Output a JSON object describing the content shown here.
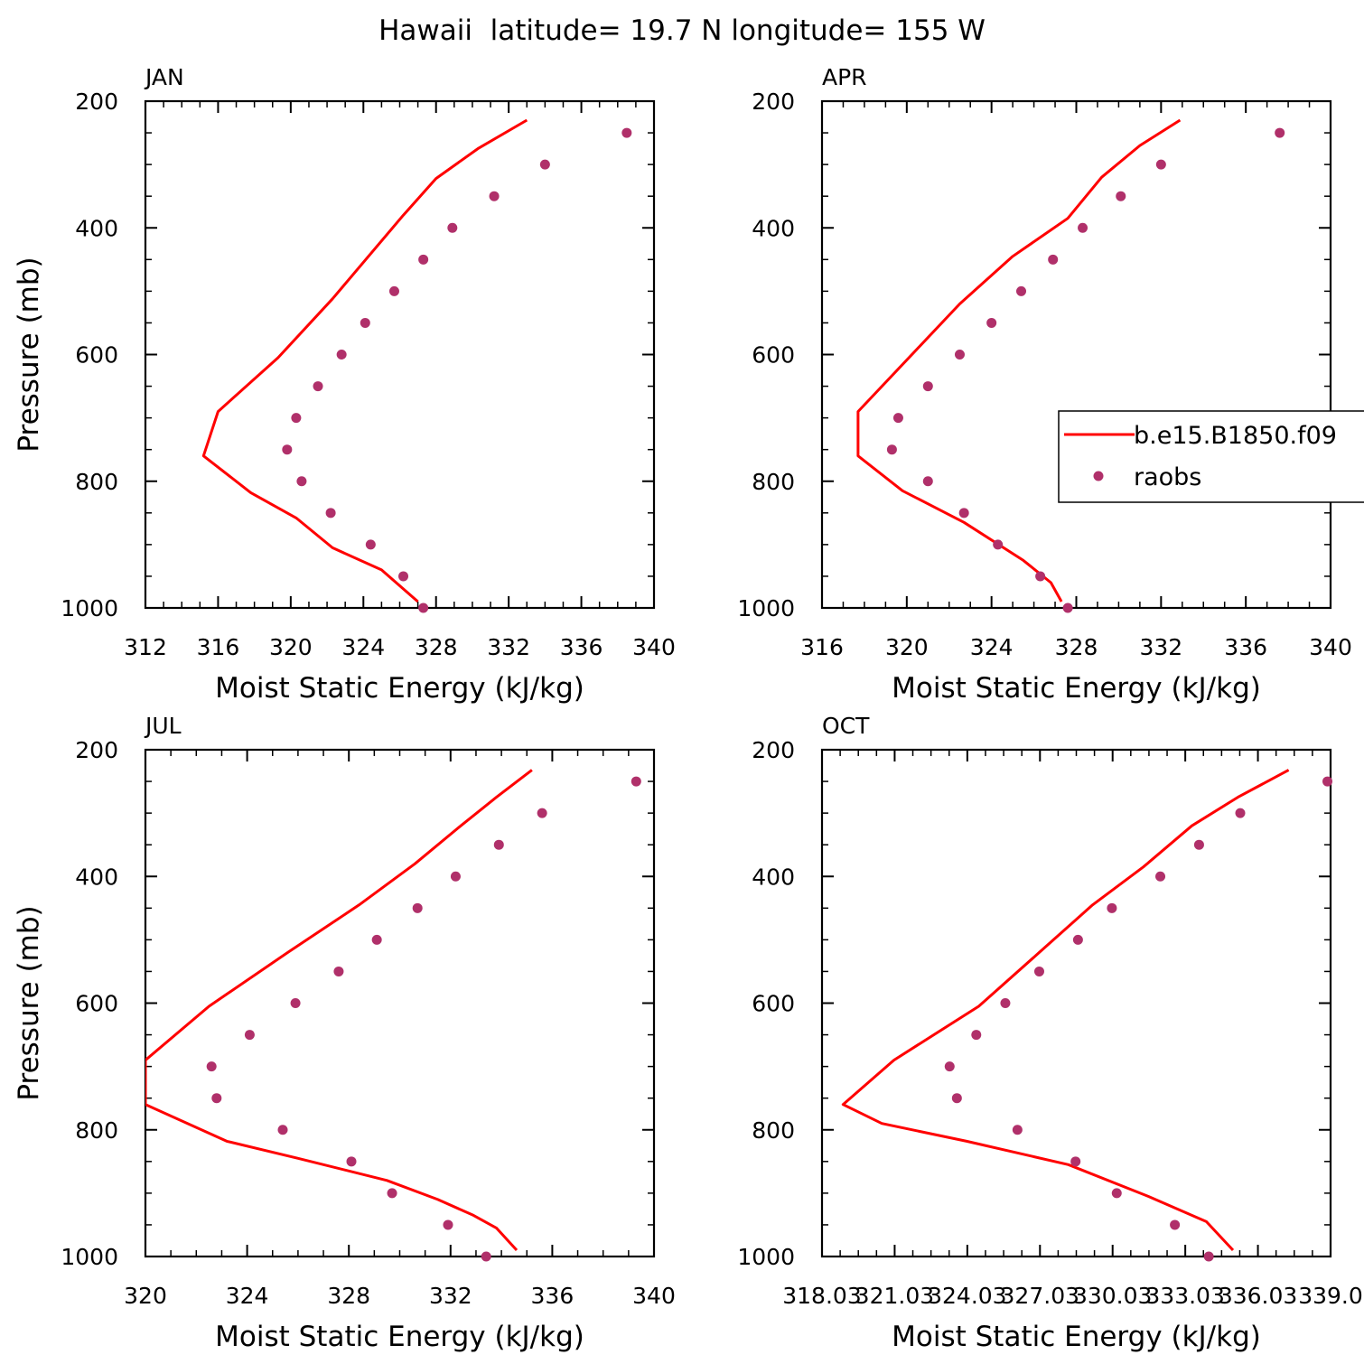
{
  "title": "Hawaii  latitude= 19.7 N longitude= 155 W",
  "colors": {
    "model": "#ff0000",
    "obs": "#b0306a",
    "axis": "#000000"
  },
  "legend": {
    "model_label": "b.e15.B1850.f09",
    "obs_label": "raobs",
    "placement": "inside APR panel, right edge"
  },
  "chart_data": [
    {
      "type": "line",
      "panel": "JAN",
      "title": "JAN",
      "xlabel": "Moist Static Energy (kJ/kg)",
      "ylabel": "Pressure (mb)",
      "xlim": [
        312,
        340
      ],
      "ylim": [
        1000,
        200
      ],
      "xticks": [
        312,
        316,
        320,
        324,
        328,
        332,
        336,
        340
      ],
      "xtick_labels": [
        "312",
        "316",
        "320",
        "324",
        "328",
        "332",
        "336",
        "340"
      ],
      "yticks": [
        200,
        400,
        600,
        800,
        1000
      ],
      "ytick_labels": [
        "200",
        "400",
        "600",
        "800",
        "1000"
      ],
      "series": [
        {
          "name": "b.e15.B1850.f09",
          "style": "line",
          "x": [
            333.0,
            330.3,
            328.0,
            326.2,
            322.3,
            319.3,
            316.0,
            315.2,
            317.8,
            320.3,
            322.3,
            325.0,
            327.0
          ],
          "y": [
            230,
            275,
            322,
            380,
            512,
            605,
            690,
            760,
            818,
            858,
            905,
            940,
            990
          ]
        },
        {
          "name": "raobs",
          "style": "points",
          "x": [
            338.5,
            334.0,
            331.2,
            328.9,
            327.3,
            325.7,
            324.1,
            322.8,
            321.5,
            320.3,
            319.8,
            320.6,
            322.2,
            324.4,
            326.2,
            327.3
          ],
          "y": [
            250,
            300,
            350,
            400,
            450,
            500,
            550,
            600,
            650,
            700,
            750,
            800,
            850,
            900,
            950,
            1000
          ]
        }
      ]
    },
    {
      "type": "line",
      "panel": "APR",
      "title": "APR",
      "xlabel": "Moist Static Energy (kJ/kg)",
      "ylabel": "",
      "xlim": [
        316,
        340
      ],
      "ylim": [
        1000,
        200
      ],
      "xticks": [
        316,
        320,
        324,
        328,
        332,
        336,
        340
      ],
      "xtick_labels": [
        "316",
        "320",
        "324",
        "328",
        "332",
        "336",
        "340"
      ],
      "yticks": [
        200,
        400,
        600,
        800,
        1000
      ],
      "ytick_labels": [
        "200",
        "400",
        "600",
        "800",
        "1000"
      ],
      "series": [
        {
          "name": "b.e15.B1850.f09",
          "style": "line",
          "x": [
            332.9,
            331.0,
            329.2,
            327.6,
            325.0,
            322.5,
            317.7,
            317.7,
            319.8,
            322.7,
            325.5,
            326.8,
            327.3
          ],
          "y": [
            230,
            270,
            320,
            385,
            445,
            520,
            690,
            760,
            815,
            865,
            925,
            960,
            990
          ]
        },
        {
          "name": "raobs",
          "style": "points",
          "x": [
            337.6,
            332.0,
            330.1,
            328.3,
            326.9,
            325.4,
            324.0,
            322.5,
            321.0,
            319.6,
            319.3,
            321.0,
            322.7,
            324.3,
            326.3,
            327.6
          ],
          "y": [
            250,
            300,
            350,
            400,
            450,
            500,
            550,
            600,
            650,
            700,
            750,
            800,
            850,
            900,
            950,
            1000
          ]
        }
      ]
    },
    {
      "type": "line",
      "panel": "JUL",
      "title": "JUL",
      "xlabel": "Moist Static Energy (kJ/kg)",
      "ylabel": "Pressure (mb)",
      "xlim": [
        320,
        340
      ],
      "ylim": [
        1000,
        200
      ],
      "xticks": [
        320,
        324,
        328,
        332,
        336,
        340
      ],
      "xtick_labels": [
        "320",
        "324",
        "328",
        "332",
        "336",
        "340"
      ],
      "yticks": [
        200,
        400,
        600,
        800,
        1000
      ],
      "ytick_labels": [
        "200",
        "400",
        "600",
        "800",
        "1000"
      ],
      "series": [
        {
          "name": "b.e15.B1850.f09",
          "style": "line",
          "x": [
            335.2,
            333.8,
            332.4,
            330.6,
            328.4,
            325.6,
            322.5,
            320.0,
            320.0,
            323.2,
            326.0,
            329.5,
            331.5,
            332.9,
            333.8,
            334.6
          ],
          "y": [
            232,
            275,
            320,
            380,
            445,
            520,
            605,
            690,
            760,
            818,
            845,
            880,
            910,
            935,
            955,
            990
          ]
        },
        {
          "name": "raobs",
          "style": "points",
          "x": [
            339.3,
            335.6,
            333.9,
            332.2,
            330.7,
            329.1,
            327.6,
            325.9,
            324.1,
            322.6,
            322.8,
            325.4,
            328.1,
            329.7,
            331.9,
            333.4
          ],
          "y": [
            250,
            300,
            350,
            400,
            450,
            500,
            550,
            600,
            650,
            700,
            750,
            800,
            850,
            900,
            950,
            1000
          ]
        }
      ]
    },
    {
      "type": "line",
      "panel": "OCT",
      "title": "OCT",
      "xlabel": "Moist Static Energy (kJ/kg)",
      "ylabel": "",
      "xlim": [
        318.03,
        339.03
      ],
      "ylim": [
        1000,
        200
      ],
      "xticks": [
        318.03,
        321.03,
        324.03,
        327.03,
        330.03,
        333.03,
        336.03,
        339.03
      ],
      "xtick_labels": [
        "318.03",
        "321.03",
        "324.03",
        "327.03",
        "330.03",
        "333.03",
        "336.03",
        "339.0"
      ],
      "yticks": [
        200,
        400,
        600,
        800,
        1000
      ],
      "ytick_labels": [
        "200",
        "400",
        "600",
        "800",
        "1000"
      ],
      "series": [
        {
          "name": "b.e15.B1850.f09",
          "style": "line",
          "x": [
            337.3,
            335.2,
            333.3,
            331.3,
            329.2,
            327.0,
            324.5,
            321.0,
            318.9,
            320.5,
            324.0,
            328.2,
            331.5,
            333.9,
            335.0
          ],
          "y": [
            232,
            275,
            320,
            385,
            445,
            520,
            605,
            690,
            760,
            790,
            818,
            855,
            905,
            945,
            990
          ]
        },
        {
          "name": "raobs",
          "style": "points",
          "x": [
            338.9,
            335.3,
            333.6,
            332.0,
            330.0,
            328.6,
            327.0,
            325.6,
            324.4,
            323.3,
            323.6,
            326.1,
            328.5,
            330.2,
            332.6,
            334.0
          ],
          "y": [
            250,
            300,
            350,
            400,
            450,
            500,
            550,
            600,
            650,
            700,
            750,
            800,
            850,
            900,
            950,
            1000
          ]
        }
      ]
    }
  ]
}
